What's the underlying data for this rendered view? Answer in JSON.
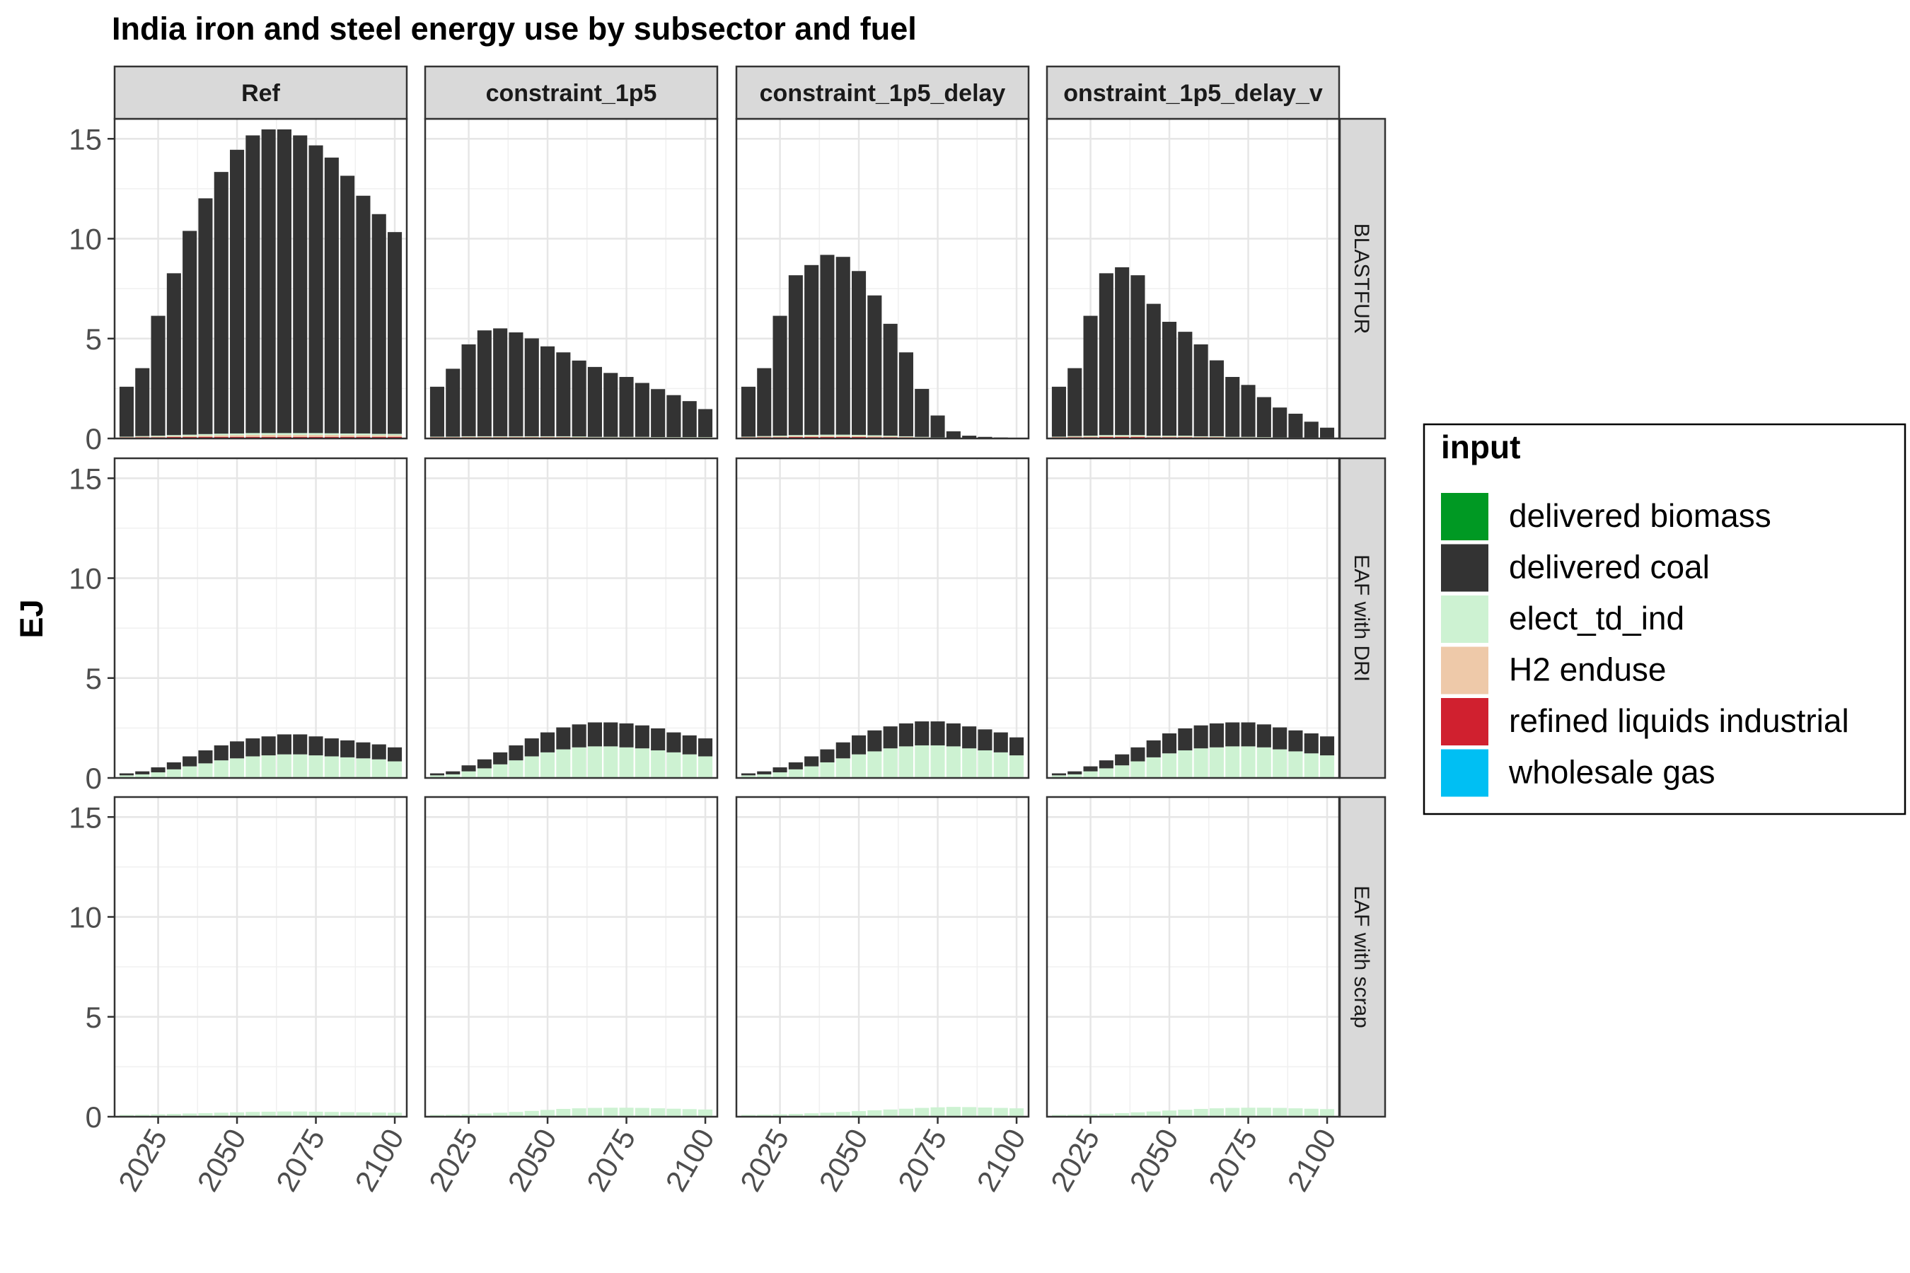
{
  "chart_data": {
    "type": "bar",
    "stacked": true,
    "title": "India  iron and steel energy use by subsector and fuel",
    "ylabel": "EJ",
    "xlabel": "",
    "ylim": [
      0,
      16
    ],
    "y_ticks": [
      "0",
      "5",
      "10",
      "15"
    ],
    "x_ticks": [
      "2025",
      "2050",
      "2075",
      "2100"
    ],
    "x_tick_values": [
      2025,
      2050,
      2075,
      2100
    ],
    "grid": true,
    "legend_position": "right",
    "legend_title": "input",
    "scenarios": [
      "Ref",
      "constraint_1p5",
      "constraint_1p5_delay",
      "onstraint_1p5_delay_v"
    ],
    "subsectors": [
      "BLASTFUR",
      "EAF with DRI",
      "EAF with scrap"
    ],
    "years": [
      2015,
      2020,
      2025,
      2030,
      2035,
      2040,
      2045,
      2050,
      2055,
      2060,
      2065,
      2070,
      2075,
      2080,
      2085,
      2090,
      2095,
      2100
    ],
    "inputs": [
      {
        "name": "delivered biomass",
        "color": "#009923"
      },
      {
        "name": "delivered coal",
        "color": "#333333"
      },
      {
        "name": "elect_td_ind",
        "color": "#cdf2d2"
      },
      {
        "name": "H2 enduse",
        "color": "#eec9a9"
      },
      {
        "name": "refined liquids industrial",
        "color": "#d0202f"
      },
      {
        "name": "wholesale gas",
        "color": "#00bff3"
      }
    ],
    "series": {
      "BLASTFUR": {
        "Ref": {
          "delivered coal": [
            2.5,
            3.4,
            6.0,
            8.1,
            10.2,
            11.8,
            13.1,
            14.2,
            14.9,
            15.2,
            15.2,
            14.9,
            14.4,
            13.8,
            12.9,
            11.9,
            11.0,
            10.1
          ],
          "elect_td_ind": [
            0.02,
            0.03,
            0.04,
            0.05,
            0.06,
            0.07,
            0.08,
            0.08,
            0.09,
            0.09,
            0.09,
            0.09,
            0.09,
            0.08,
            0.08,
            0.08,
            0.07,
            0.07
          ],
          "H2 enduse": [
            0.02,
            0.03,
            0.04,
            0.05,
            0.06,
            0.07,
            0.08,
            0.09,
            0.1,
            0.1,
            0.1,
            0.1,
            0.1,
            0.1,
            0.09,
            0.09,
            0.08,
            0.08
          ],
          "refined liquids industrial": [
            0.05,
            0.06,
            0.06,
            0.07,
            0.07,
            0.08,
            0.08,
            0.08,
            0.08,
            0.08,
            0.08,
            0.08,
            0.08,
            0.08,
            0.08,
            0.08,
            0.08,
            0.08
          ]
        },
        "constraint_1p5": {
          "delivered coal": [
            2.5,
            3.4,
            4.6,
            5.3,
            5.4,
            5.2,
            4.9,
            4.5,
            4.2,
            3.8,
            3.5,
            3.2,
            3.0,
            2.7,
            2.4,
            2.1,
            1.8,
            1.4
          ],
          "elect_td_ind": [
            0.02,
            0.02,
            0.03,
            0.03,
            0.03,
            0.03,
            0.03,
            0.03,
            0.03,
            0.03,
            0.02,
            0.02,
            0.02,
            0.02,
            0.02,
            0.02,
            0.02,
            0.02
          ],
          "H2 enduse": [
            0.02,
            0.02,
            0.03,
            0.03,
            0.03,
            0.03,
            0.03,
            0.03,
            0.03,
            0.03,
            0.02,
            0.02,
            0.02,
            0.02,
            0.02,
            0.02,
            0.02,
            0.02
          ],
          "refined liquids industrial": [
            0.05,
            0.05,
            0.05,
            0.05,
            0.05,
            0.05,
            0.05,
            0.05,
            0.05,
            0.04,
            0.04,
            0.04,
            0.04,
            0.04,
            0.03,
            0.03,
            0.03,
            0.03
          ]
        },
        "constraint_1p5_delay": {
          "delivered coal": [
            2.5,
            3.4,
            6.0,
            8.0,
            8.5,
            9.0,
            8.9,
            8.2,
            7.0,
            5.6,
            4.2,
            2.4,
            1.1,
            0.35,
            0.14,
            0.08,
            0.05,
            0.03
          ],
          "elect_td_ind": [
            0.02,
            0.03,
            0.04,
            0.05,
            0.05,
            0.06,
            0.06,
            0.05,
            0.05,
            0.04,
            0.03,
            0.02,
            0.01,
            0.0,
            0.0,
            0.0,
            0.0,
            0.0
          ],
          "H2 enduse": [
            0.02,
            0.03,
            0.04,
            0.05,
            0.06,
            0.06,
            0.06,
            0.06,
            0.05,
            0.04,
            0.03,
            0.02,
            0.01,
            0.0,
            0.0,
            0.0,
            0.0,
            0.0
          ],
          "refined liquids industrial": [
            0.05,
            0.06,
            0.06,
            0.07,
            0.07,
            0.07,
            0.07,
            0.07,
            0.06,
            0.06,
            0.05,
            0.04,
            0.03,
            0.01,
            0.0,
            0.0,
            0.0,
            0.0
          ]
        },
        "onstraint_1p5_delay_v": {
          "delivered coal": [
            2.5,
            3.4,
            6.0,
            8.1,
            8.4,
            8.0,
            6.6,
            5.7,
            5.2,
            4.6,
            3.8,
            3.0,
            2.6,
            2.0,
            1.5,
            1.2,
            0.8,
            0.5
          ],
          "elect_td_ind": [
            0.02,
            0.03,
            0.04,
            0.05,
            0.05,
            0.05,
            0.04,
            0.04,
            0.04,
            0.03,
            0.03,
            0.02,
            0.02,
            0.02,
            0.01,
            0.01,
            0.01,
            0.01
          ],
          "H2 enduse": [
            0.02,
            0.03,
            0.04,
            0.05,
            0.05,
            0.05,
            0.04,
            0.04,
            0.04,
            0.03,
            0.03,
            0.02,
            0.02,
            0.02,
            0.01,
            0.01,
            0.01,
            0.01
          ],
          "refined liquids industrial": [
            0.05,
            0.06,
            0.06,
            0.07,
            0.07,
            0.07,
            0.06,
            0.06,
            0.06,
            0.05,
            0.05,
            0.04,
            0.04,
            0.03,
            0.03,
            0.02,
            0.02,
            0.02
          ]
        }
      },
      "EAF with DRI": {
        "Ref": {
          "delivered coal": [
            0.1,
            0.15,
            0.25,
            0.35,
            0.5,
            0.65,
            0.75,
            0.85,
            0.9,
            0.95,
            1.0,
            1.0,
            0.95,
            0.9,
            0.85,
            0.8,
            0.75,
            0.7
          ],
          "elect_td_ind": [
            0.1,
            0.15,
            0.25,
            0.4,
            0.55,
            0.7,
            0.85,
            0.95,
            1.05,
            1.1,
            1.15,
            1.15,
            1.1,
            1.05,
            1.0,
            0.95,
            0.9,
            0.8
          ],
          "refined liquids industrial": [
            0.03,
            0.03,
            0.03,
            0.03,
            0.03,
            0.03,
            0.03,
            0.03,
            0.03,
            0.03,
            0.03,
            0.03,
            0.03,
            0.03,
            0.03,
            0.03,
            0.03,
            0.03
          ]
        },
        "constraint_1p5": {
          "delivered coal": [
            0.1,
            0.15,
            0.3,
            0.45,
            0.6,
            0.75,
            0.9,
            1.0,
            1.1,
            1.15,
            1.2,
            1.2,
            1.2,
            1.15,
            1.1,
            1.0,
            0.95,
            0.9
          ],
          "elect_td_ind": [
            0.1,
            0.15,
            0.3,
            0.45,
            0.65,
            0.85,
            1.05,
            1.25,
            1.4,
            1.5,
            1.55,
            1.55,
            1.5,
            1.45,
            1.35,
            1.25,
            1.15,
            1.05
          ],
          "refined liquids industrial": [
            0.03,
            0.03,
            0.03,
            0.03,
            0.03,
            0.03,
            0.03,
            0.03,
            0.03,
            0.03,
            0.03,
            0.03,
            0.03,
            0.03,
            0.03,
            0.03,
            0.03,
            0.03
          ]
        },
        "constraint_1p5_delay": {
          "delivered coal": [
            0.1,
            0.15,
            0.25,
            0.35,
            0.5,
            0.65,
            0.8,
            0.95,
            1.05,
            1.1,
            1.15,
            1.2,
            1.2,
            1.15,
            1.1,
            1.05,
            1.0,
            0.9
          ],
          "elect_td_ind": [
            0.1,
            0.15,
            0.25,
            0.4,
            0.55,
            0.75,
            0.95,
            1.15,
            1.3,
            1.45,
            1.55,
            1.6,
            1.6,
            1.55,
            1.45,
            1.35,
            1.25,
            1.1
          ],
          "refined liquids industrial": [
            0.03,
            0.03,
            0.03,
            0.03,
            0.03,
            0.03,
            0.03,
            0.03,
            0.03,
            0.03,
            0.03,
            0.03,
            0.03,
            0.03,
            0.03,
            0.03,
            0.03,
            0.03
          ]
        },
        "onstraint_1p5_delay_v": {
          "delivered coal": [
            0.1,
            0.15,
            0.25,
            0.4,
            0.55,
            0.7,
            0.85,
            1.0,
            1.1,
            1.15,
            1.2,
            1.2,
            1.2,
            1.15,
            1.1,
            1.05,
            1.0,
            0.95
          ],
          "elect_td_ind": [
            0.1,
            0.15,
            0.3,
            0.45,
            0.6,
            0.8,
            1.0,
            1.2,
            1.35,
            1.45,
            1.5,
            1.55,
            1.55,
            1.5,
            1.4,
            1.3,
            1.2,
            1.1
          ],
          "refined liquids industrial": [
            0.03,
            0.03,
            0.03,
            0.03,
            0.03,
            0.03,
            0.03,
            0.03,
            0.03,
            0.03,
            0.03,
            0.03,
            0.03,
            0.03,
            0.03,
            0.03,
            0.03,
            0.03
          ]
        }
      },
      "EAF with scrap": {
        "Ref": {
          "elect_td_ind": [
            0.05,
            0.06,
            0.08,
            0.1,
            0.12,
            0.14,
            0.16,
            0.18,
            0.2,
            0.21,
            0.22,
            0.22,
            0.21,
            0.2,
            0.19,
            0.18,
            0.17,
            0.16
          ],
          "H2 enduse": [
            0.02,
            0.02,
            0.02,
            0.02,
            0.02,
            0.02,
            0.02,
            0.02,
            0.02,
            0.02,
            0.02,
            0.02,
            0.02,
            0.02,
            0.02,
            0.02,
            0.02,
            0.02
          ],
          "refined liquids industrial": [
            0.02,
            0.02,
            0.02,
            0.02,
            0.02,
            0.02,
            0.02,
            0.02,
            0.02,
            0.02,
            0.02,
            0.02,
            0.02,
            0.02,
            0.02,
            0.02,
            0.02,
            0.02
          ]
        },
        "constraint_1p5": {
          "elect_td_ind": [
            0.05,
            0.06,
            0.08,
            0.12,
            0.16,
            0.2,
            0.25,
            0.3,
            0.35,
            0.38,
            0.4,
            0.41,
            0.41,
            0.4,
            0.38,
            0.36,
            0.34,
            0.32
          ],
          "H2 enduse": [
            0.02,
            0.02,
            0.02,
            0.02,
            0.02,
            0.02,
            0.02,
            0.02,
            0.02,
            0.02,
            0.02,
            0.02,
            0.02,
            0.02,
            0.02,
            0.02,
            0.02,
            0.02
          ],
          "refined liquids industrial": [
            0.02,
            0.02,
            0.02,
            0.02,
            0.02,
            0.02,
            0.02,
            0.02,
            0.02,
            0.02,
            0.02,
            0.02,
            0.02,
            0.02,
            0.02,
            0.02,
            0.02,
            0.02
          ]
        },
        "constraint_1p5_delay": {
          "elect_td_ind": [
            0.05,
            0.06,
            0.08,
            0.1,
            0.13,
            0.16,
            0.2,
            0.24,
            0.28,
            0.32,
            0.36,
            0.4,
            0.43,
            0.45,
            0.44,
            0.42,
            0.4,
            0.38
          ],
          "H2 enduse": [
            0.02,
            0.02,
            0.02,
            0.02,
            0.02,
            0.02,
            0.02,
            0.02,
            0.02,
            0.02,
            0.02,
            0.02,
            0.02,
            0.02,
            0.02,
            0.02,
            0.02,
            0.02
          ],
          "refined liquids industrial": [
            0.02,
            0.02,
            0.02,
            0.02,
            0.02,
            0.02,
            0.02,
            0.02,
            0.02,
            0.02,
            0.02,
            0.02,
            0.02,
            0.02,
            0.02,
            0.02,
            0.02,
            0.02
          ]
        },
        "onstraint_1p5_delay_v": {
          "elect_td_ind": [
            0.05,
            0.06,
            0.08,
            0.11,
            0.14,
            0.18,
            0.22,
            0.27,
            0.31,
            0.35,
            0.38,
            0.4,
            0.41,
            0.41,
            0.4,
            0.38,
            0.36,
            0.34
          ],
          "H2 enduse": [
            0.02,
            0.02,
            0.02,
            0.02,
            0.02,
            0.02,
            0.02,
            0.02,
            0.02,
            0.02,
            0.02,
            0.02,
            0.02,
            0.02,
            0.02,
            0.02,
            0.02,
            0.02
          ],
          "refined liquids industrial": [
            0.02,
            0.02,
            0.02,
            0.02,
            0.02,
            0.02,
            0.02,
            0.02,
            0.02,
            0.02,
            0.02,
            0.02,
            0.02,
            0.02,
            0.02,
            0.02,
            0.02,
            0.02
          ]
        }
      }
    }
  }
}
